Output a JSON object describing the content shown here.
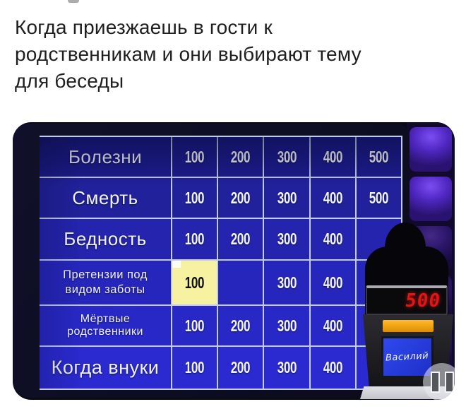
{
  "caption": {
    "lines": [
      "Когда приезжаешь в гости к",
      "родственникам и они выбирают тему",
      "для беседы"
    ]
  },
  "board": {
    "rows": [
      {
        "category": "Болезни",
        "values": [
          "100",
          "200",
          "300",
          "400",
          "500"
        ]
      },
      {
        "category": "Смерть",
        "values": [
          "100",
          "200",
          "300",
          "400",
          "500"
        ]
      },
      {
        "category": "Бедность",
        "values": [
          "100",
          "200",
          "300",
          "400",
          ""
        ]
      },
      {
        "category": "Претензии под видом заботы",
        "values": [
          "100",
          "",
          "300",
          "400",
          ""
        ]
      },
      {
        "category": "Мёртвые родственники",
        "values": [
          "100",
          "200",
          "300",
          "400",
          ""
        ]
      },
      {
        "category": "Когда внуки",
        "values": [
          "100",
          "200",
          "300",
          "400",
          ""
        ]
      }
    ],
    "selected_cell": {
      "category": "Претензии под видом заботы",
      "value": "100"
    }
  },
  "podium": {
    "score": "500",
    "player_name": "Василий"
  },
  "icons": {
    "pause": "pause-icon"
  },
  "colors": {
    "cell_blue_top": "#1c1c8e",
    "cell_blue_bottom": "#2a2ad0",
    "selected_yellow": "#f7f2a2",
    "gridline": "#c3cbe6",
    "led_red": "#e31414",
    "podium_orange": "#f5a623",
    "name_plate_blue": "#2741e8",
    "wall_purple": "#5b32d9"
  }
}
